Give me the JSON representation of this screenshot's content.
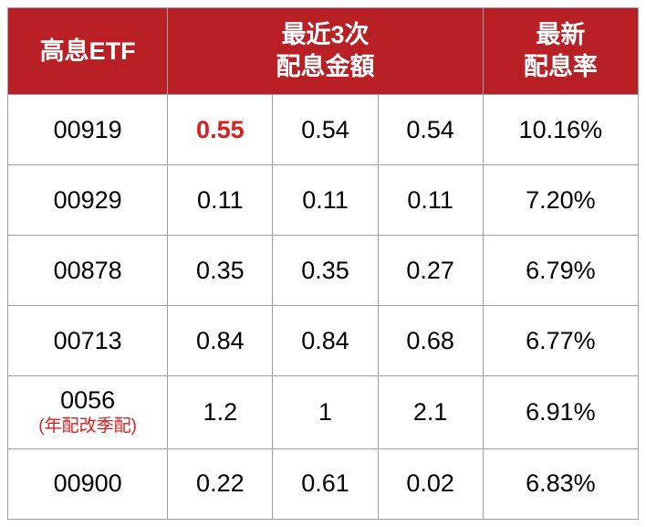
{
  "table": {
    "headers": {
      "etf": "高息ETF",
      "dividends": "最近3次\n配息金額",
      "rate": "最新\n配息率"
    },
    "rows": [
      {
        "etf": "00919",
        "etf_note": "",
        "d1": "0.55",
        "d1_highlight": true,
        "d2": "0.54",
        "d3": "0.54",
        "rate": "10.16%"
      },
      {
        "etf": "00929",
        "etf_note": "",
        "d1": "0.11",
        "d1_highlight": false,
        "d2": "0.11",
        "d3": "0.11",
        "rate": "7.20%"
      },
      {
        "etf": "00878",
        "etf_note": "",
        "d1": "0.35",
        "d1_highlight": false,
        "d2": "0.35",
        "d3": "0.27",
        "rate": "6.79%"
      },
      {
        "etf": "00713",
        "etf_note": "",
        "d1": "0.84",
        "d1_highlight": false,
        "d2": "0.84",
        "d3": "0.68",
        "rate": "6.77%"
      },
      {
        "etf": "0056",
        "etf_note": "(年配改季配)",
        "d1": "1.2",
        "d1_highlight": false,
        "d2": "1",
        "d3": "2.1",
        "rate": "6.91%"
      },
      {
        "etf": "00900",
        "etf_note": "",
        "d1": "0.22",
        "d1_highlight": false,
        "d2": "0.61",
        "d3": "0.02",
        "rate": "6.83%"
      }
    ],
    "colors": {
      "header_bg": "#b92025",
      "header_text": "#ffffff",
      "border": "#a0a0a0",
      "cell_text": "#000000",
      "highlight": "#d8201f"
    }
  }
}
